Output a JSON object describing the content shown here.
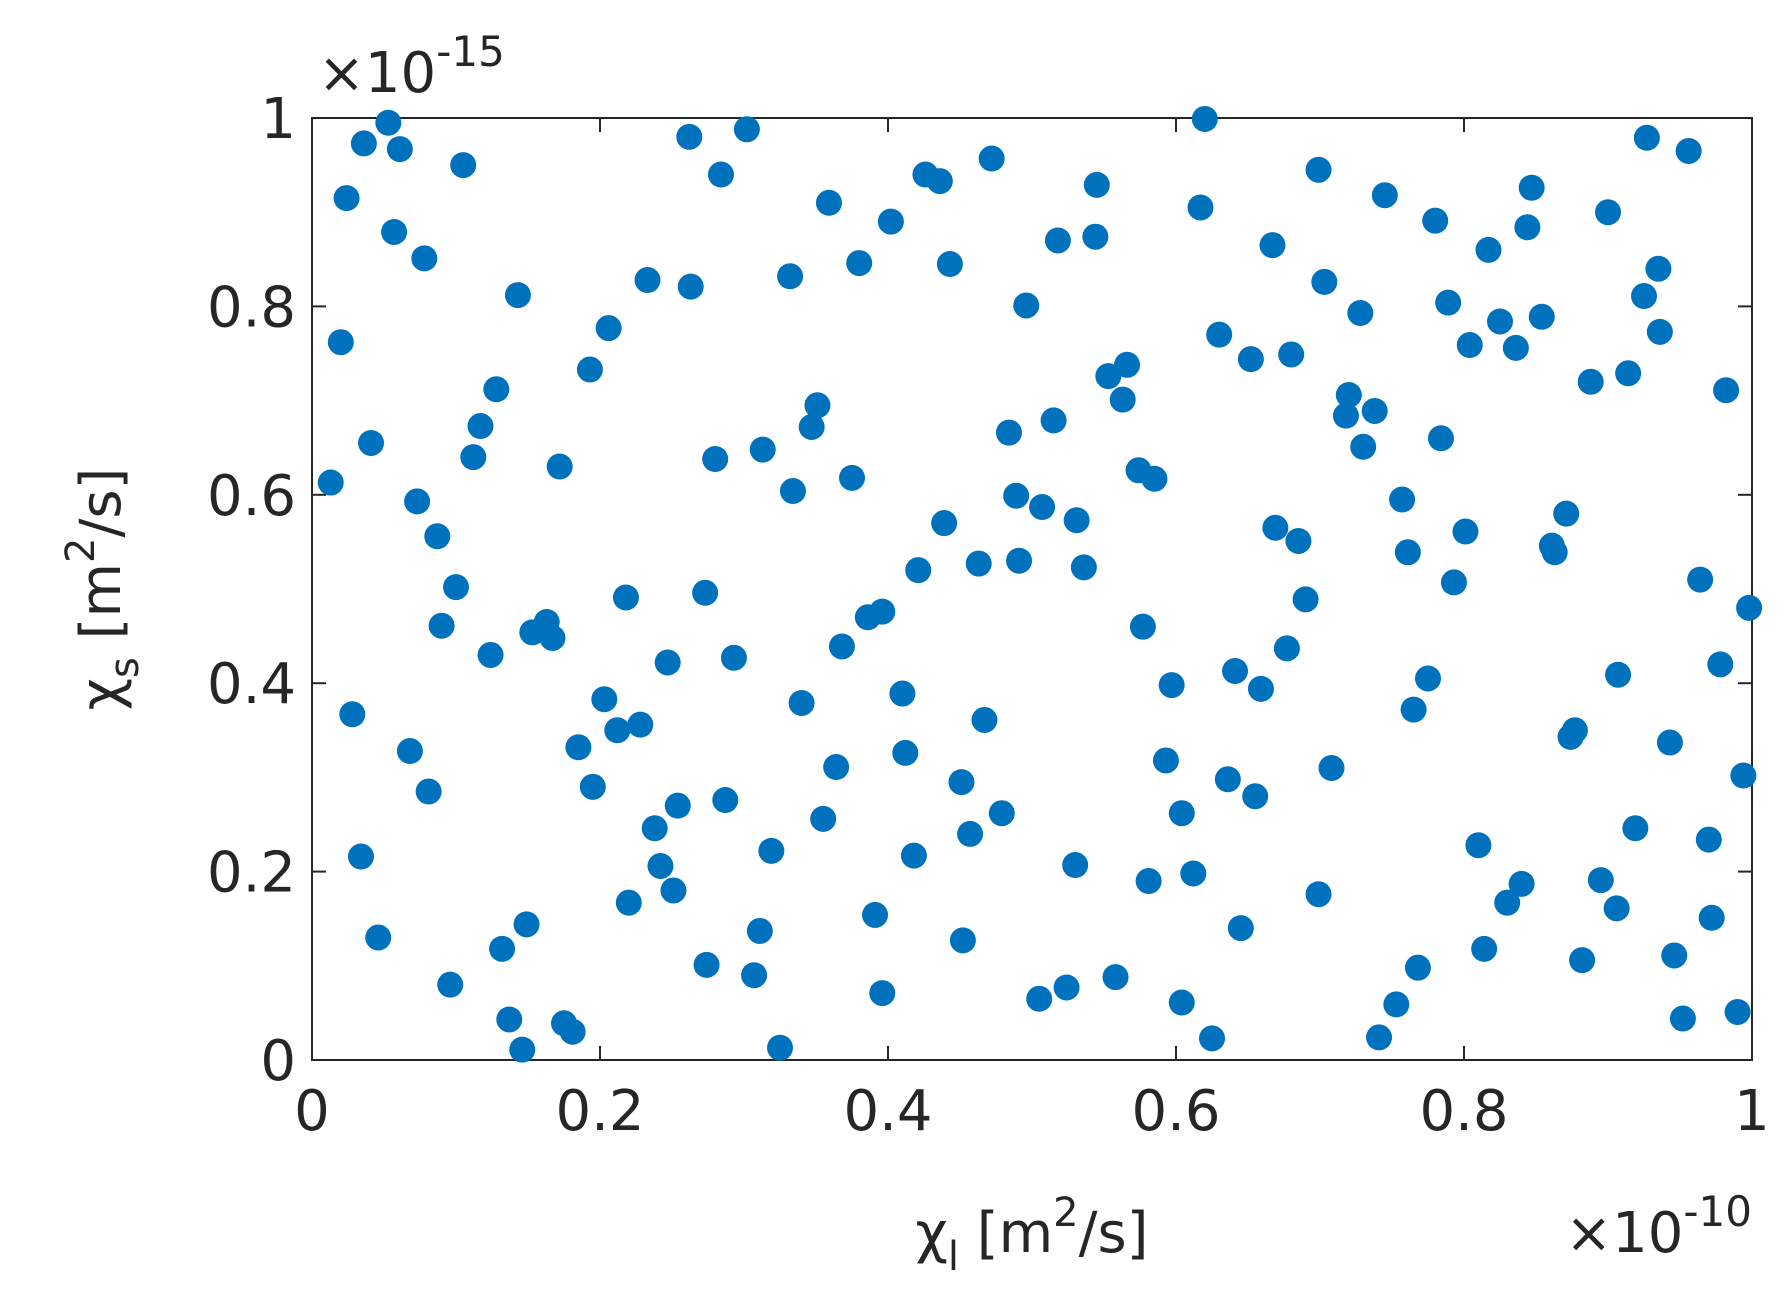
{
  "chart_data": {
    "type": "scatter",
    "color": "#0072BD",
    "xlim": [
      0,
      1
    ],
    "ylim": [
      0,
      1
    ],
    "xticks": [
      0,
      0.2,
      0.4,
      0.6,
      0.8,
      1
    ],
    "yticks": [
      0,
      0.2,
      0.4,
      0.6,
      0.8,
      1
    ],
    "x_multiplier": {
      "base": "×10",
      "exponent": "-10"
    },
    "y_multiplier": {
      "base": "×10",
      "exponent": "-15"
    },
    "xlabel": {
      "symbol": "χ",
      "subscript": "l",
      "unit_pre": " [m",
      "unit_sup": "2",
      "unit_post": "/s]"
    },
    "ylabel": {
      "symbol": "χ",
      "subscript": "s",
      "unit_pre": " [m",
      "unit_sup": "2",
      "unit_post": "/s]"
    },
    "x": [
      0.013,
      0.02,
      0.024,
      0.028,
      0.034,
      0.036,
      0.041,
      0.046,
      0.053,
      0.057,
      0.061,
      0.068,
      0.073,
      0.078,
      0.081,
      0.087,
      0.09,
      0.096,
      0.1,
      0.105,
      0.112,
      0.117,
      0.124,
      0.128,
      0.132,
      0.137,
      0.143,
      0.146,
      0.149,
      0.153,
      0.163,
      0.167,
      0.172,
      0.175,
      0.181,
      0.185,
      0.193,
      0.195,
      0.203,
      0.206,
      0.212,
      0.218,
      0.22,
      0.228,
      0.233,
      0.238,
      0.242,
      0.247,
      0.251,
      0.254,
      0.262,
      0.263,
      0.273,
      0.274,
      0.28,
      0.284,
      0.287,
      0.293,
      0.302,
      0.307,
      0.311,
      0.313,
      0.319,
      0.325,
      0.332,
      0.334,
      0.34,
      0.347,
      0.351,
      0.355,
      0.359,
      0.364,
      0.368,
      0.375,
      0.38,
      0.386,
      0.391,
      0.396,
      0.396,
      0.402,
      0.41,
      0.412,
      0.418,
      0.421,
      0.426,
      0.436,
      0.439,
      0.443,
      0.451,
      0.452,
      0.457,
      0.463,
      0.467,
      0.472,
      0.479,
      0.484,
      0.489,
      0.491,
      0.496,
      0.505,
      0.507,
      0.515,
      0.518,
      0.524,
      0.531,
      0.53,
      0.536,
      0.544,
      0.545,
      0.553,
      0.558,
      0.563,
      0.566,
      0.574,
      0.577,
      0.581,
      0.585,
      0.593,
      0.597,
      0.604,
      0.604,
      0.612,
      0.617,
      0.62,
      0.625,
      0.63,
      0.636,
      0.641,
      0.645,
      0.652,
      0.655,
      0.659,
      0.667,
      0.669,
      0.677,
      0.68,
      0.685,
      0.69,
      0.699,
      0.699,
      0.703,
      0.708,
      0.718,
      0.72,
      0.728,
      0.73,
      0.738,
      0.741,
      0.745,
      0.753,
      0.757,
      0.761,
      0.765,
      0.768,
      0.775,
      0.78,
      0.784,
      0.789,
      0.793,
      0.801,
      0.804,
      0.81,
      0.814,
      0.817,
      0.825,
      0.83,
      0.836,
      0.84,
      0.844,
      0.847,
      0.854,
      0.861,
      0.863,
      0.871,
      0.874,
      0.877,
      0.882,
      0.888,
      0.895,
      0.9,
      0.906,
      0.907,
      0.914,
      0.919,
      0.925,
      0.927,
      0.935,
      0.936,
      0.943,
      0.946,
      0.952,
      0.956,
      0.964,
      0.97,
      0.972,
      0.978,
      0.982,
      0.99,
      0.994,
      0.998
    ],
    "y": [
      0.613,
      0.762,
      0.915,
      0.367,
      0.216,
      0.973,
      0.655,
      0.13,
      0.995,
      0.879,
      0.967,
      0.328,
      0.593,
      0.851,
      0.285,
      0.556,
      0.461,
      0.08,
      0.502,
      0.95,
      0.64,
      0.673,
      0.43,
      0.712,
      0.118,
      0.043,
      0.812,
      0.011,
      0.144,
      0.454,
      0.465,
      0.448,
      0.63,
      0.039,
      0.03,
      0.332,
      0.733,
      0.29,
      0.383,
      0.777,
      0.35,
      0.491,
      0.167,
      0.356,
      0.828,
      0.246,
      0.206,
      0.422,
      0.18,
      0.27,
      0.98,
      0.821,
      0.496,
      0.101,
      0.638,
      0.94,
      0.276,
      0.427,
      0.988,
      0.09,
      0.137,
      0.648,
      0.222,
      0.013,
      0.832,
      0.604,
      0.379,
      0.672,
      0.695,
      0.256,
      0.91,
      0.311,
      0.439,
      0.618,
      0.846,
      0.47,
      0.154,
      0.476,
      0.071,
      0.89,
      0.389,
      0.326,
      0.217,
      0.52,
      0.94,
      0.933,
      0.57,
      0.845,
      0.295,
      0.127,
      0.24,
      0.527,
      0.361,
      0.957,
      0.262,
      0.666,
      0.599,
      0.53,
      0.801,
      0.065,
      0.587,
      0.679,
      0.87,
      0.077,
      0.573,
      0.207,
      0.523,
      0.874,
      0.929,
      0.726,
      0.088,
      0.701,
      0.738,
      0.626,
      0.46,
      0.19,
      0.617,
      0.318,
      0.398,
      0.262,
      0.061,
      0.198,
      0.905,
      0.999,
      0.023,
      0.77,
      0.298,
      0.413,
      0.14,
      0.744,
      0.28,
      0.394,
      0.865,
      0.565,
      0.437,
      0.749,
      0.551,
      0.489,
      0.945,
      0.176,
      0.826,
      0.31,
      0.684,
      0.706,
      0.793,
      0.651,
      0.689,
      0.024,
      0.918,
      0.059,
      0.595,
      0.539,
      0.372,
      0.098,
      0.405,
      0.891,
      0.66,
      0.804,
      0.507,
      0.561,
      0.759,
      0.228,
      0.118,
      0.86,
      0.784,
      0.167,
      0.756,
      0.187,
      0.884,
      0.926,
      0.789,
      0.546,
      0.539,
      0.58,
      0.343,
      0.35,
      0.106,
      0.72,
      0.191,
      0.9,
      0.161,
      0.409,
      0.729,
      0.246,
      0.811,
      0.979,
      0.84,
      0.773,
      0.337,
      0.111,
      0.044,
      0.965,
      0.51,
      0.234,
      0.151,
      0.42,
      0.711,
      0.051,
      0.302,
      0.48
    ]
  }
}
